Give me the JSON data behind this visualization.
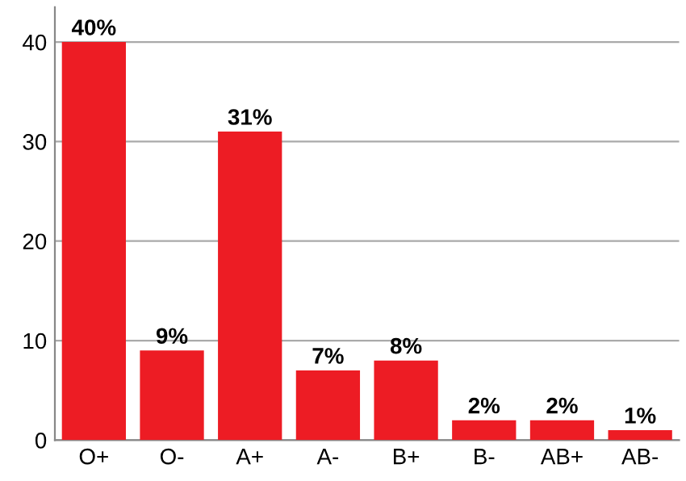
{
  "chart_data": {
    "type": "bar",
    "categories": [
      "O+",
      "O-",
      "A+",
      "A-",
      "B+",
      "B-",
      "AB+",
      "AB-"
    ],
    "values": [
      40,
      9,
      31,
      7,
      8,
      2,
      2,
      1
    ],
    "value_labels": [
      "40%",
      "9%",
      "31%",
      "7%",
      "8%",
      "2%",
      "2%",
      "1%"
    ],
    "color": "#ed1c24",
    "ylim": [
      0,
      43.5
    ],
    "yticks": [
      0,
      10,
      20,
      30,
      40
    ],
    "grid": "y"
  }
}
